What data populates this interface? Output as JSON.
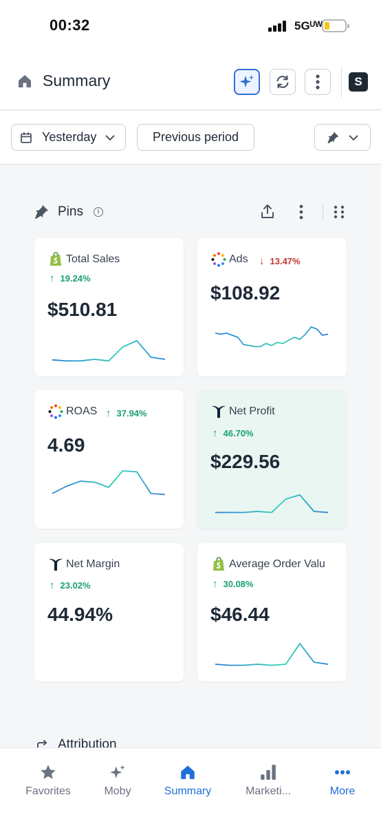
{
  "status_bar": {
    "time": "00:32",
    "network": "5Gᵁᵂ"
  },
  "header": {
    "title": "Summary",
    "shop_initial": "S"
  },
  "filters": {
    "date_range": "Yesterday",
    "compare": "Previous period"
  },
  "pins": {
    "title": "Pins",
    "info": "i",
    "cards": [
      {
        "name": "Total Sales",
        "icon": "shopify-icon",
        "change": "19.24%",
        "direction": "up",
        "value": "$510.81",
        "trend": [
          0.35,
          0.25,
          0.25,
          0.4,
          0.25,
          1.6,
          2.2,
          0.6,
          0.4
        ]
      },
      {
        "name": "Ads",
        "icon": "multi-platform-icon",
        "change": "13.47%",
        "direction": "down",
        "value": "$108.92",
        "trend": [
          1.6,
          1.5,
          1.6,
          1.4,
          1.2,
          0.5,
          0.4,
          0.3,
          0.3,
          0.6,
          0.4,
          0.7,
          0.6,
          0.9,
          1.2,
          1.0,
          1.5,
          2.2,
          2.0,
          1.4,
          1.5
        ]
      },
      {
        "name": "ROAS",
        "icon": "multi-platform-icon",
        "change": "37.94%",
        "direction": "up",
        "value": "4.69",
        "trend": [
          0.4,
          1.1,
          1.6,
          1.5,
          1.0,
          2.6,
          2.5,
          0.4,
          0.3
        ]
      },
      {
        "name": "Net Profit",
        "icon": "triple-whale-icon",
        "change": "46.70%",
        "direction": "up",
        "value": "$229.56",
        "trend": [
          0.3,
          0.3,
          0.3,
          0.4,
          0.3,
          1.6,
          2.0,
          0.4,
          0.3
        ]
      },
      {
        "name": "Net Margin",
        "icon": "triple-whale-icon",
        "change": "23.02%",
        "direction": "up",
        "value": "44.94%",
        "trend": []
      },
      {
        "name": "Average Order Valu",
        "icon": "shopify-icon",
        "change": "30.08%",
        "direction": "up",
        "value": "$46.44",
        "trend": [
          0.4,
          0.3,
          0.3,
          0.4,
          0.3,
          0.4,
          2.4,
          0.6,
          0.4
        ]
      }
    ]
  },
  "attribution": {
    "title": "Attribution"
  },
  "tabs": [
    {
      "label": "Favorites",
      "icon": "star-icon",
      "active": false
    },
    {
      "label": "Moby",
      "icon": "sparkles-icon",
      "active": false
    },
    {
      "label": "Summary",
      "icon": "home-icon",
      "active": true
    },
    {
      "label": "Marketi...",
      "icon": "bar-chart-icon",
      "active": false
    },
    {
      "label": "More",
      "icon": "ellipsis-icon",
      "active": false
    }
  ],
  "colors": {
    "accent": "#1f6fd6",
    "up": "#1aa06d",
    "down": "#c0392b",
    "spark_start": "#2b7fd8",
    "spark_end": "#2fd3b4"
  }
}
